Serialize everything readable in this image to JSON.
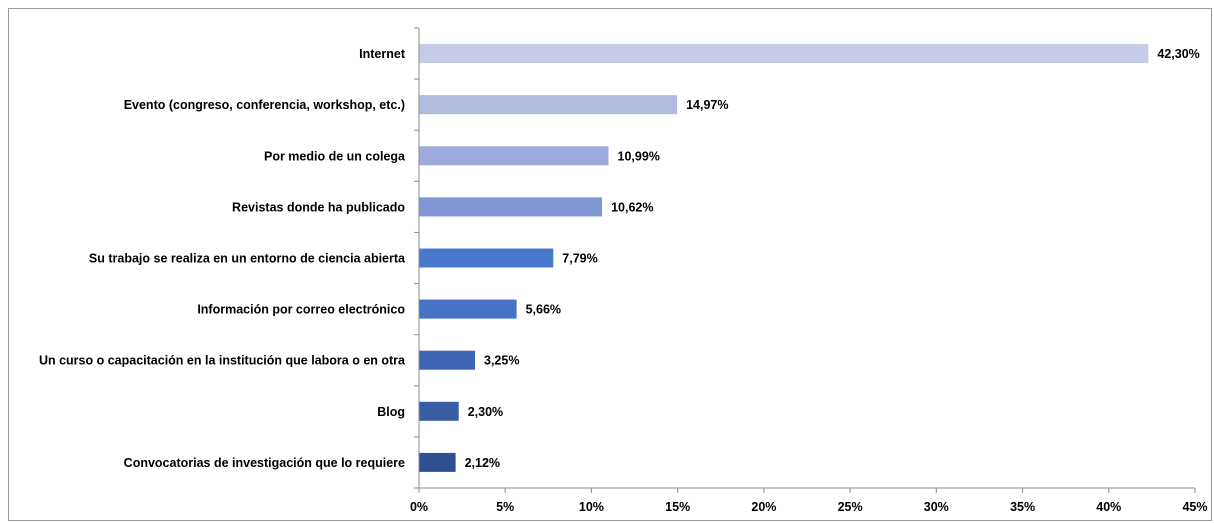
{
  "chart_data": {
    "type": "bar",
    "orientation": "horizontal",
    "title": "",
    "xlabel": "",
    "ylabel": "",
    "categories": [
      "Internet",
      "Evento (congreso, conferencia, workshop, etc.)",
      "Por medio de un colega",
      "Revistas donde ha publicado",
      "Su trabajo se realiza en un entorno de ciencia abierta",
      "Información por correo electrónico",
      "Un curso o capacitación en la institución que labora o en otra",
      "Blog",
      "Convocatorias de investigación que lo requiere"
    ],
    "values": [
      42.3,
      14.97,
      10.99,
      10.62,
      7.79,
      5.66,
      3.25,
      2.3,
      2.12
    ],
    "value_labels": [
      "42,30%",
      "14,97%",
      "10,99%",
      "10,62%",
      "7,79%",
      "5,66%",
      "3,25%",
      "2,30%",
      "2,12%"
    ],
    "bar_colors": [
      "#c5cbe6",
      "#b2bbe0",
      "#9eaadb",
      "#8097d3",
      "#4a78cd",
      "#4673c6",
      "#3e65b4",
      "#375ea3",
      "#305191"
    ],
    "xlim": [
      0,
      45
    ],
    "x_ticks": [
      0,
      5,
      10,
      15,
      20,
      25,
      30,
      35,
      40,
      45
    ],
    "x_tick_labels": [
      "0%",
      "5%",
      "10%",
      "15%",
      "20%",
      "25%",
      "30%",
      "35%",
      "40%",
      "45%"
    ],
    "grid": false,
    "legend": "none"
  }
}
